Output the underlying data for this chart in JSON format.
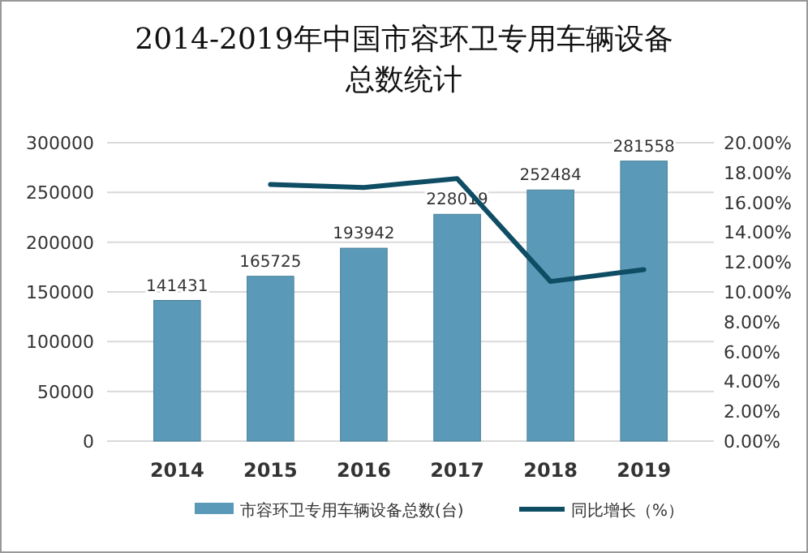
{
  "chart_data": {
    "type": "bar",
    "title": "2014-2019年中国市容环卫专用车辆设备总数统计",
    "categories": [
      "2014",
      "2015",
      "2016",
      "2017",
      "2018",
      "2019"
    ],
    "series": [
      {
        "name": "市容环卫专用车辆设备总数(台)",
        "color": "#5a9ab8",
        "values": [
          141431,
          165725,
          193942,
          228019,
          252484,
          281558
        ],
        "value_labels": [
          "141431",
          "165725",
          "193942",
          "228019",
          "252484",
          "281558"
        ]
      },
      {
        "name": "同比增长（%）",
        "type": "line",
        "axis": "y2",
        "color": "#0e4d64",
        "values": [
          null,
          17.2,
          17.0,
          17.6,
          10.7,
          11.5
        ]
      }
    ],
    "ylim": [
      0,
      300000
    ],
    "yticks": [
      0,
      50000,
      100000,
      150000,
      200000,
      250000,
      300000
    ],
    "y2lim": [
      0,
      20
    ],
    "y2ticks": [
      {
        "value": 0,
        "label": "0.00%"
      },
      {
        "value": 2,
        "label": "2.00%"
      },
      {
        "value": 4,
        "label": "4.00%"
      },
      {
        "value": 6,
        "label": "6.00%"
      },
      {
        "value": 8,
        "label": "8.00%"
      },
      {
        "value": 10,
        "label": "10.00%"
      },
      {
        "value": 12,
        "label": "12.00%"
      },
      {
        "value": 14,
        "label": "14.00%"
      },
      {
        "value": 16,
        "label": "16.00%"
      },
      {
        "value": 18,
        "label": "18.00%"
      },
      {
        "value": 20,
        "label": "20.00%"
      }
    ],
    "grid": "y",
    "legend": "bottom"
  }
}
